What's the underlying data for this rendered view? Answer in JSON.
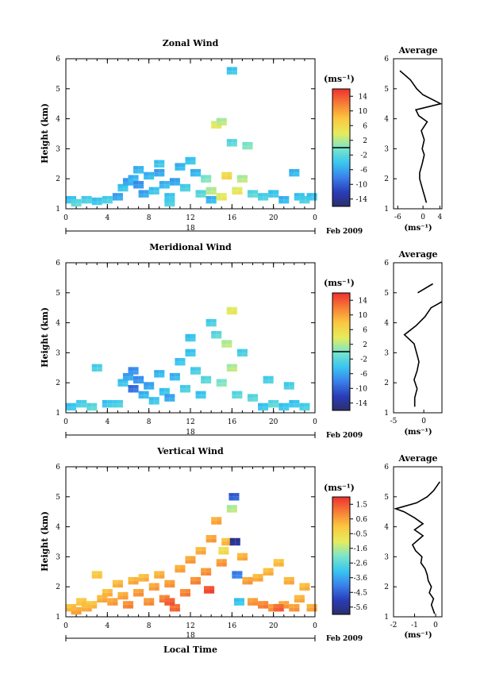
{
  "figure": {
    "date_label": "Feb 2009",
    "day_label": "18",
    "xlabel": "Local Time",
    "ylabel": "Height (km)",
    "unit_label": "(ms⁻¹)",
    "average_title": "Average"
  },
  "chart_data": [
    {
      "type": "heatmap",
      "title": "Zonal Wind",
      "xlabel": "",
      "ylabel": "Height (km)",
      "x_ticks": [
        "0",
        "4",
        "8",
        "12",
        "16",
        "20",
        "0"
      ],
      "xlim": [
        0,
        24
      ],
      "ylim": [
        1,
        6
      ],
      "y_ticks": [
        "1",
        "2",
        "3",
        "4",
        "5",
        "6"
      ],
      "colorbar": {
        "label": "(ms⁻¹)",
        "ticks": [
          "14",
          "10",
          "6",
          "2",
          "-2",
          "-6",
          "-10",
          "-14"
        ],
        "range": [
          -16,
          16
        ],
        "contour_at": 0
      },
      "cells": [
        [
          0.5,
          1.3,
          -4
        ],
        [
          1,
          1.2,
          -2
        ],
        [
          2,
          1.3,
          -3
        ],
        [
          3,
          1.25,
          -4
        ],
        [
          4,
          1.3,
          -3
        ],
        [
          5,
          1.4,
          -6
        ],
        [
          5.5,
          1.7,
          -4
        ],
        [
          6,
          1.9,
          -6
        ],
        [
          6.5,
          2.0,
          -5
        ],
        [
          7,
          1.8,
          -7
        ],
        [
          7.5,
          1.5,
          -6
        ],
        [
          8,
          2.1,
          -5
        ],
        [
          8.5,
          1.6,
          -4
        ],
        [
          9,
          2.2,
          -6
        ],
        [
          9.5,
          1.8,
          -5
        ],
        [
          10,
          1.4,
          -4
        ],
        [
          10.5,
          1.9,
          -6
        ],
        [
          11,
          2.4,
          -5
        ],
        [
          11.5,
          1.7,
          -3
        ],
        [
          12,
          2.6,
          -4
        ],
        [
          12.5,
          2.2,
          -5
        ],
        [
          13,
          1.5,
          -2
        ],
        [
          13.5,
          2.0,
          0
        ],
        [
          14,
          1.6,
          2
        ],
        [
          14.5,
          3.8,
          4
        ],
        [
          15,
          3.9,
          2
        ],
        [
          15.5,
          2.1,
          6
        ],
        [
          16,
          5.6,
          -4
        ],
        [
          16,
          3.2,
          -2
        ],
        [
          16.5,
          1.6,
          4
        ],
        [
          17,
          2.0,
          2
        ],
        [
          17.5,
          3.1,
          0
        ],
        [
          18,
          1.5,
          -2
        ],
        [
          19,
          1.4,
          -3
        ],
        [
          20,
          1.5,
          -4
        ],
        [
          21,
          1.3,
          -5
        ],
        [
          22,
          2.2,
          -5
        ],
        [
          22.5,
          1.4,
          -4
        ],
        [
          23,
          1.3,
          -3
        ],
        [
          23.7,
          1.4,
          -4
        ],
        [
          9,
          2.5,
          -4
        ],
        [
          7,
          2.3,
          -5
        ],
        [
          10,
          1.2,
          -3
        ],
        [
          14,
          1.3,
          -5
        ],
        [
          15,
          1.4,
          4
        ]
      ],
      "profile": {
        "title": "Average",
        "xlabel": "(ms⁻¹)",
        "x_ticks": [
          "-6",
          "0",
          "4"
        ],
        "xlim": [
          -7,
          4.5
        ],
        "heights": [
          1.2,
          1.4,
          1.6,
          1.8,
          2.0,
          2.2,
          2.5,
          2.8,
          3.0,
          3.3,
          3.6,
          3.9,
          4.1,
          4.3,
          4.5,
          4.8,
          5.0,
          5.3,
          5.6
        ],
        "values": [
          0.8,
          0.4,
          0.0,
          -0.4,
          -0.8,
          -0.8,
          -0.2,
          0.3,
          -0.2,
          0.3,
          -0.4,
          1.0,
          -1.0,
          -1.7,
          4.2,
          0.0,
          -1.5,
          -3.0,
          -5.5
        ]
      }
    },
    {
      "type": "heatmap",
      "title": "Meridional Wind",
      "xlabel": "",
      "ylabel": "Height (km)",
      "x_ticks": [
        "0",
        "4",
        "8",
        "12",
        "16",
        "20",
        "0"
      ],
      "xlim": [
        0,
        24
      ],
      "ylim": [
        1,
        6
      ],
      "y_ticks": [
        "1",
        "2",
        "3",
        "4",
        "5",
        "6"
      ],
      "colorbar": {
        "label": "(ms⁻¹)",
        "ticks": [
          "14",
          "10",
          "6",
          "2",
          "-2",
          "-6",
          "-10",
          "-14"
        ],
        "range": [
          -16,
          16
        ],
        "contour_at": 0
      },
      "cells": [
        [
          0.5,
          1.2,
          -4
        ],
        [
          1.5,
          1.3,
          -3
        ],
        [
          2.5,
          1.2,
          -2
        ],
        [
          3,
          2.5,
          -3
        ],
        [
          4,
          1.3,
          -4
        ],
        [
          5,
          1.3,
          -3
        ],
        [
          5.5,
          2.0,
          -4
        ],
        [
          6,
          2.2,
          -6
        ],
        [
          6.5,
          1.8,
          -9
        ],
        [
          7,
          2.1,
          -7
        ],
        [
          7.5,
          1.6,
          -5
        ],
        [
          8,
          1.9,
          -6
        ],
        [
          8.5,
          1.4,
          -4
        ],
        [
          9,
          2.3,
          -5
        ],
        [
          9.5,
          1.7,
          -4
        ],
        [
          10,
          1.5,
          -6
        ],
        [
          10.5,
          2.2,
          -5
        ],
        [
          11,
          2.7,
          -4
        ],
        [
          11.5,
          1.8,
          -3
        ],
        [
          12,
          3.0,
          -4
        ],
        [
          12.5,
          2.4,
          -3
        ],
        [
          13,
          1.6,
          -4
        ],
        [
          13.5,
          2.1,
          -2
        ],
        [
          14,
          4.0,
          -3
        ],
        [
          14.5,
          3.6,
          -2
        ],
        [
          15,
          2.0,
          0
        ],
        [
          15.5,
          3.3,
          2
        ],
        [
          16,
          4.4,
          4
        ],
        [
          16,
          2.5,
          2
        ],
        [
          16.5,
          1.6,
          -2
        ],
        [
          17,
          3.0,
          -3
        ],
        [
          18,
          1.5,
          -2
        ],
        [
          19,
          1.2,
          -4
        ],
        [
          19.5,
          2.1,
          -3
        ],
        [
          20,
          1.3,
          -2
        ],
        [
          21,
          1.2,
          -4
        ],
        [
          21.5,
          1.9,
          -3
        ],
        [
          22,
          1.3,
          -4
        ],
        [
          23,
          1.2,
          -3
        ],
        [
          12,
          3.5,
          -4
        ],
        [
          6.5,
          2.4,
          -7
        ]
      ],
      "profile": {
        "title": "Average",
        "xlabel": "(ms⁻¹)",
        "x_ticks": [
          "-5",
          "0"
        ],
        "xlim": [
          -5,
          3
        ],
        "heights": [
          1.2,
          1.5,
          1.8,
          2.1,
          2.4,
          2.7,
          3.0,
          3.3,
          3.6,
          3.9,
          4.2,
          4.5,
          4.7
        ],
        "values": [
          -1.5,
          -1.5,
          -1.1,
          -1.6,
          -1.1,
          -0.8,
          -1.2,
          -1.6,
          -3.2,
          -1.3,
          0.2,
          1.2,
          3.0
        ]
      },
      "profile_extra": {
        "heights": [
          5.0,
          5.3
        ],
        "values": [
          -1.0,
          1.5
        ]
      }
    },
    {
      "type": "heatmap",
      "title": "Vertical Wind",
      "xlabel": "Local Time",
      "ylabel": "Height (km)",
      "x_ticks": [
        "0",
        "4",
        "8",
        "12",
        "16",
        "20",
        "0"
      ],
      "xlim": [
        0,
        24
      ],
      "ylim": [
        1,
        6
      ],
      "y_ticks": [
        "1",
        "2",
        "3",
        "4",
        "5",
        "6"
      ],
      "colorbar": {
        "label": "(ms⁻¹)",
        "ticks": [
          "1.5",
          "0.6",
          "-0.5",
          "-1.6",
          "-2.6",
          "-3.6",
          "-4.5",
          "-5.6"
        ],
        "range": [
          -6,
          2
        ]
      },
      "cells": [
        [
          0.5,
          1.3,
          0.2
        ],
        [
          1,
          1.2,
          0.4
        ],
        [
          1.5,
          1.5,
          0.0
        ],
        [
          2,
          1.3,
          0.3
        ],
        [
          2.5,
          1.4,
          0.1
        ],
        [
          3,
          2.4,
          -0.1
        ],
        [
          3.5,
          1.6,
          0.3
        ],
        [
          4,
          1.8,
          0.2
        ],
        [
          4.5,
          1.5,
          0.5
        ],
        [
          5,
          2.1,
          0.2
        ],
        [
          5.5,
          1.7,
          0.4
        ],
        [
          6,
          1.4,
          0.8
        ],
        [
          6.5,
          2.2,
          0.3
        ],
        [
          7,
          1.8,
          0.6
        ],
        [
          7.5,
          2.3,
          0.2
        ],
        [
          8,
          1.5,
          0.7
        ],
        [
          8.5,
          2.0,
          0.5
        ],
        [
          9,
          2.4,
          0.3
        ],
        [
          9.5,
          1.6,
          1.0
        ],
        [
          10,
          2.1,
          0.6
        ],
        [
          10.5,
          1.3,
          1.2
        ],
        [
          11,
          2.6,
          0.4
        ],
        [
          11.5,
          1.8,
          0.9
        ],
        [
          12,
          2.9,
          0.5
        ],
        [
          12.5,
          2.2,
          0.8
        ],
        [
          13,
          3.2,
          0.3
        ],
        [
          13.5,
          2.5,
          0.7
        ],
        [
          14,
          3.6,
          0.5
        ],
        [
          14.5,
          4.2,
          0.4
        ],
        [
          15,
          2.8,
          0.6
        ],
        [
          15.5,
          3.5,
          0.2
        ],
        [
          16,
          4.6,
          -1.5
        ],
        [
          16.2,
          5.0,
          -4.5
        ],
        [
          16.3,
          3.5,
          -5.5
        ],
        [
          16.5,
          2.4,
          -4.0
        ],
        [
          16.7,
          1.5,
          -3.0
        ],
        [
          17,
          3.0,
          0.3
        ],
        [
          17.5,
          2.2,
          0.5
        ],
        [
          18,
          1.5,
          0.6
        ],
        [
          18.5,
          2.3,
          0.3
        ],
        [
          19,
          1.4,
          0.9
        ],
        [
          19.5,
          2.5,
          0.2
        ],
        [
          20,
          1.3,
          0.7
        ],
        [
          20.5,
          2.8,
          0.1
        ],
        [
          21,
          1.4,
          0.5
        ],
        [
          21.5,
          2.2,
          0.3
        ],
        [
          22,
          1.3,
          0.6
        ],
        [
          22.5,
          1.6,
          0.3
        ],
        [
          23,
          2.0,
          0.2
        ],
        [
          23.7,
          1.3,
          0.4
        ],
        [
          13.8,
          1.9,
          1.6
        ],
        [
          10,
          1.5,
          1.4
        ],
        [
          20.5,
          1.3,
          1.3
        ],
        [
          15.2,
          3.2,
          -0.6
        ]
      ],
      "profile": {
        "title": "Average",
        "xlabel": "(ms⁻¹)",
        "x_ticks": [
          "-2",
          "-1",
          "0"
        ],
        "xlim": [
          -2,
          0.3
        ],
        "heights": [
          1.1,
          1.4,
          1.6,
          1.8,
          2.0,
          2.2,
          2.4,
          2.6,
          2.8,
          3.0,
          3.2,
          3.4,
          3.7,
          3.9,
          4.1,
          4.3,
          4.5,
          4.6,
          4.8,
          5.0,
          5.2,
          5.5
        ],
        "values": [
          -0.05,
          -0.2,
          -0.1,
          -0.3,
          -0.2,
          -0.35,
          -0.4,
          -0.5,
          -0.7,
          -0.65,
          -0.95,
          -1.1,
          -0.6,
          -1.0,
          -0.6,
          -1.0,
          -1.5,
          -1.9,
          -0.9,
          -0.4,
          -0.1,
          0.2
        ]
      }
    }
  ]
}
